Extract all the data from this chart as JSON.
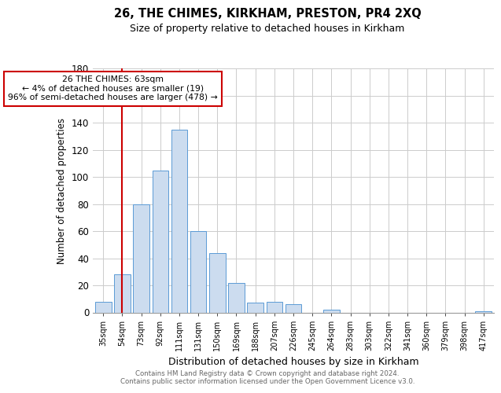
{
  "title": "26, THE CHIMES, KIRKHAM, PRESTON, PR4 2XQ",
  "subtitle": "Size of property relative to detached houses in Kirkham",
  "xlabel": "Distribution of detached houses by size in Kirkham",
  "ylabel": "Number of detached properties",
  "categories": [
    "35sqm",
    "54sqm",
    "73sqm",
    "92sqm",
    "111sqm",
    "131sqm",
    "150sqm",
    "169sqm",
    "188sqm",
    "207sqm",
    "226sqm",
    "245sqm",
    "264sqm",
    "283sqm",
    "303sqm",
    "322sqm",
    "341sqm",
    "360sqm",
    "379sqm",
    "398sqm",
    "417sqm"
  ],
  "values": [
    8,
    28,
    80,
    105,
    135,
    60,
    44,
    22,
    7,
    8,
    6,
    0,
    2,
    0,
    0,
    0,
    0,
    0,
    0,
    0,
    1
  ],
  "bar_color": "#ccdcef",
  "bar_edge_color": "#5b9bd5",
  "vline_color": "#cc0000",
  "annotation_text": "26 THE CHIMES: 63sqm\n← 4% of detached houses are smaller (19)\n96% of semi-detached houses are larger (478) →",
  "annotation_box_color": "#ffffff",
  "annotation_box_edge": "#cc0000",
  "ylim": [
    0,
    180
  ],
  "yticks": [
    0,
    20,
    40,
    60,
    80,
    100,
    120,
    140,
    160,
    180
  ],
  "footer1": "Contains HM Land Registry data © Crown copyright and database right 2024.",
  "footer2": "Contains public sector information licensed under the Open Government Licence v3.0.",
  "grid_color": "#cccccc",
  "vline_x_index": 1
}
